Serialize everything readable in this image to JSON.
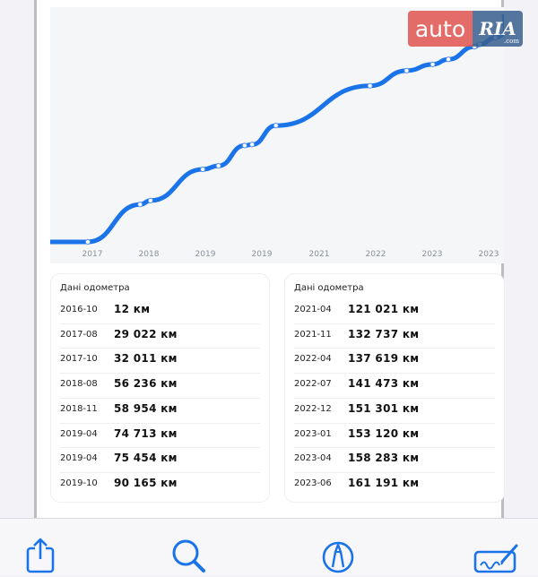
{
  "logo": {
    "left": "auto",
    "right": "RIA",
    "sub": ".com"
  },
  "chart_data": {
    "type": "line",
    "title": "",
    "xlabel": "",
    "ylabel": "",
    "x_ticks": [
      "2017",
      "2017",
      "2018",
      "2019",
      "2019",
      "2021",
      "2022",
      "2023",
      "2023"
    ],
    "points": [
      {
        "date": "2016-10",
        "km": 12
      },
      {
        "date": "2017-08",
        "km": 29022
      },
      {
        "date": "2017-10",
        "km": 32011
      },
      {
        "date": "2018-08",
        "km": 56236
      },
      {
        "date": "2018-11",
        "km": 58954
      },
      {
        "date": "2019-04",
        "km": 74713
      },
      {
        "date": "2019-04",
        "km": 75454
      },
      {
        "date": "2019-10",
        "km": 90165
      },
      {
        "date": "2021-04",
        "km": 121021
      },
      {
        "date": "2021-11",
        "km": 132737
      },
      {
        "date": "2022-04",
        "km": 137619
      },
      {
        "date": "2022-07",
        "km": 141473
      },
      {
        "date": "2022-12",
        "km": 151301
      },
      {
        "date": "2023-01",
        "km": 153120
      },
      {
        "date": "2023-04",
        "km": 158283
      },
      {
        "date": "2023-06",
        "km": 161191
      }
    ],
    "grid": false,
    "line_color": "#1a73e8"
  },
  "panels": [
    {
      "title": "Дані одометра",
      "rows": [
        {
          "date": "2016-10",
          "km": "12 км"
        },
        {
          "date": "2017-08",
          "km": "29 022 км"
        },
        {
          "date": "2017-10",
          "km": "32 011 км"
        },
        {
          "date": "2018-08",
          "km": "56 236 км"
        },
        {
          "date": "2018-11",
          "km": "58 954 км"
        },
        {
          "date": "2019-04",
          "km": "74 713 км"
        },
        {
          "date": "2019-04",
          "km": "75 454 км"
        },
        {
          "date": "2019-10",
          "km": "90 165 км"
        }
      ]
    },
    {
      "title": "Дані одометра",
      "rows": [
        {
          "date": "2021-04",
          "km": "121 021 км"
        },
        {
          "date": "2021-11",
          "km": "132 737 км"
        },
        {
          "date": "2022-04",
          "km": "137 619 км"
        },
        {
          "date": "2022-07",
          "km": "141 473 км"
        },
        {
          "date": "2022-12",
          "km": "151 301 км"
        },
        {
          "date": "2023-01",
          "km": "153 120 км"
        },
        {
          "date": "2023-04",
          "km": "158 283 км"
        },
        {
          "date": "2023-06",
          "km": "161 191 км"
        }
      ]
    }
  ],
  "toolbar": {
    "accent_color": "#1a73e8",
    "icons": [
      "share-icon",
      "search-icon",
      "markup-icon",
      "signature-icon"
    ]
  }
}
